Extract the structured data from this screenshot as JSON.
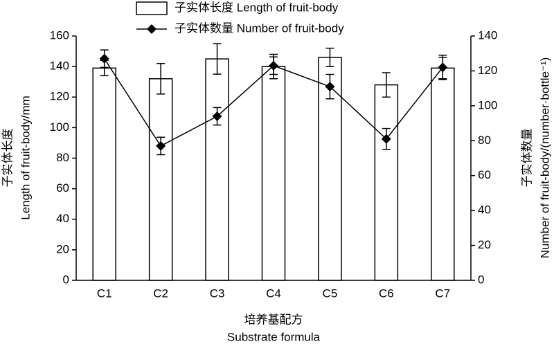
{
  "chart_data": {
    "type": "bar",
    "categories": [
      "C1",
      "C2",
      "C3",
      "C4",
      "C5",
      "C6",
      "C7"
    ],
    "series": [
      {
        "name": "子实体长度 Length of fruit-body",
        "type": "bar",
        "color": "#ffffff",
        "values": [
          139,
          132,
          145,
          140,
          146,
          128,
          139
        ],
        "errors": [
          5,
          10,
          10,
          8,
          6,
          8,
          7
        ]
      },
      {
        "name": "子实体数量 Number of fruit-body",
        "type": "line",
        "axis": "y2",
        "color": "#000000",
        "values": [
          127,
          77,
          94,
          123,
          111,
          81,
          122
        ],
        "errors": [
          5,
          5,
          5,
          5,
          7,
          6,
          7
        ]
      }
    ],
    "ylim": [
      0,
      160
    ],
    "yticks": [
      0,
      20,
      40,
      60,
      80,
      100,
      120,
      140,
      160
    ],
    "y2lim": [
      0,
      140
    ],
    "y2ticks": [
      0,
      20,
      40,
      60,
      80,
      100,
      120,
      140
    ],
    "xlabel": [
      "培养基配方",
      "Substrate formula"
    ],
    "ylabel": [
      "子实体长度",
      "Length of fruit-body/mm"
    ],
    "y2label": [
      "子实体数量",
      "Number of fruit-body/(number·bottle⁻¹)"
    ],
    "grid": false
  }
}
